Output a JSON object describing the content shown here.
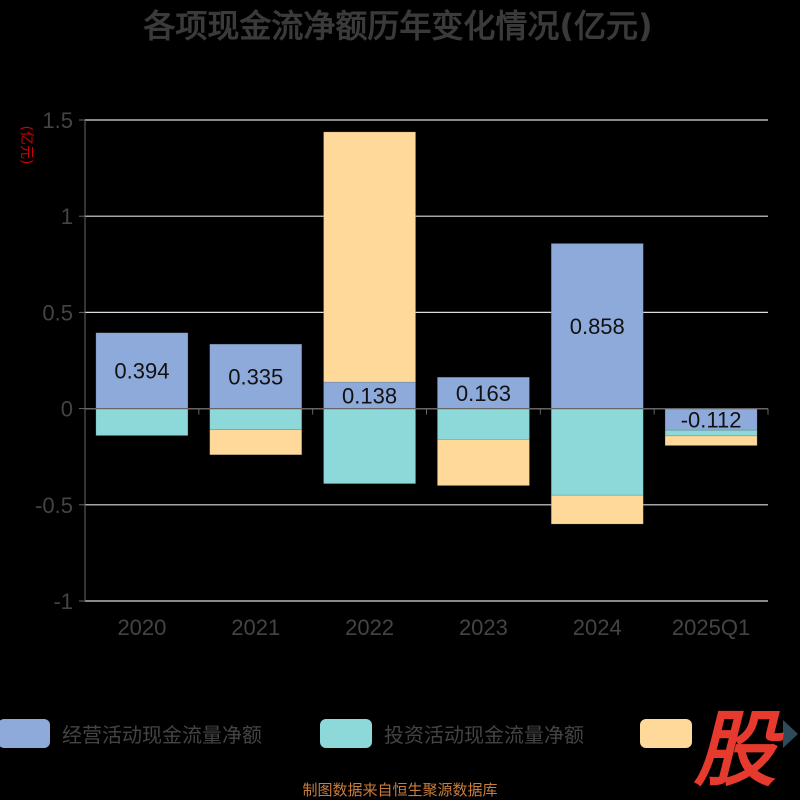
{
  "chart_data": {
    "type": "bar",
    "stacked": true,
    "title": "各项现金流净额历年变化情况(亿元)",
    "unit": "(亿元)",
    "categories": [
      "2020",
      "2021",
      "2022",
      "2023",
      "2024",
      "2025Q1"
    ],
    "ylim": [
      -1,
      1.5
    ],
    "yticks": [
      "1.5",
      "1",
      "0.5",
      "0",
      "-0.5",
      "-1"
    ],
    "ytick_values": [
      1.5,
      1,
      0.5,
      0,
      -0.5,
      -1
    ],
    "grid": true,
    "legend_position": "bottom",
    "series": [
      {
        "name": "经营活动现金流量净额",
        "color": "#8eaadb",
        "values": [
          0.394,
          0.335,
          0.138,
          0.163,
          0.858,
          -0.112
        ],
        "labels": [
          "0.394",
          "0.335",
          "0.138",
          "0.163",
          "0.858",
          "-0.112"
        ]
      },
      {
        "name": "投资活动现金流量净额",
        "color": "#8dd8d8",
        "values": [
          -0.14,
          -0.11,
          -0.39,
          -0.16,
          -0.45,
          -0.03
        ]
      },
      {
        "name": "",
        "color": "#ffd99a",
        "values": [
          0,
          -0.13,
          1.3,
          -0.24,
          -0.15,
          -0.05
        ]
      }
    ]
  },
  "colors": {
    "background": "#000000",
    "gridline": "#dddddd",
    "axis": "#666666",
    "unit_label": "#cc0000",
    "source_text": "#c87d3c",
    "logo": "#e63a2e",
    "legend_arrow": "#2f4a5a"
  },
  "source_note": "制图数据来自恒生聚源数据库",
  "logo_text": "股"
}
